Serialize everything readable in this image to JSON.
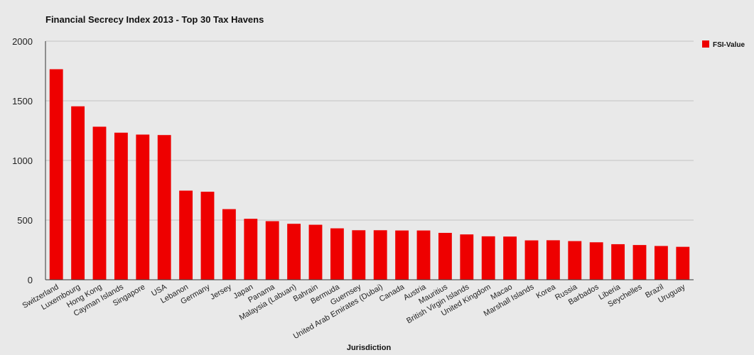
{
  "chart_data": {
    "type": "bar",
    "title": "Financial Secrecy Index 2013 - Top 30 Tax Havens",
    "xlabel": "Jurisdiction",
    "ylabel": "",
    "ylim": [
      0,
      2000
    ],
    "yticks": [
      0,
      500,
      1000,
      1500,
      2000
    ],
    "grid": true,
    "legend": "top-right",
    "categories": [
      "Switzerland",
      "Luxembourg",
      "Hong Kong",
      "Cayman Islands",
      "Singapore",
      "USA",
      "Lebanon",
      "Germany",
      "Jersey",
      "Japan",
      "Panama",
      "Malaysia (Labuan)",
      "Bahrain",
      "Bermuda",
      "Guernsey",
      "United Arab Emirates (Dubai)",
      "Canada",
      "Austria",
      "Mauritius",
      "British Virgin Islands",
      "United Kingdom",
      "Macao",
      "Marshall Islands",
      "Korea",
      "Russia",
      "Barbados",
      "Liberia",
      "Seychelles",
      "Brazil",
      "Uruguay"
    ],
    "series": [
      {
        "name": "FSI-Value",
        "color": "#ee0000",
        "values": [
          1765,
          1454,
          1283,
          1233,
          1217,
          1213,
          747,
          738,
          592,
          511,
          491,
          469,
          461,
          431,
          415,
          415,
          413,
          413,
          393,
          380,
          364,
          362,
          330,
          331,
          324,
          314,
          298,
          291,
          283,
          276
        ]
      }
    ]
  }
}
